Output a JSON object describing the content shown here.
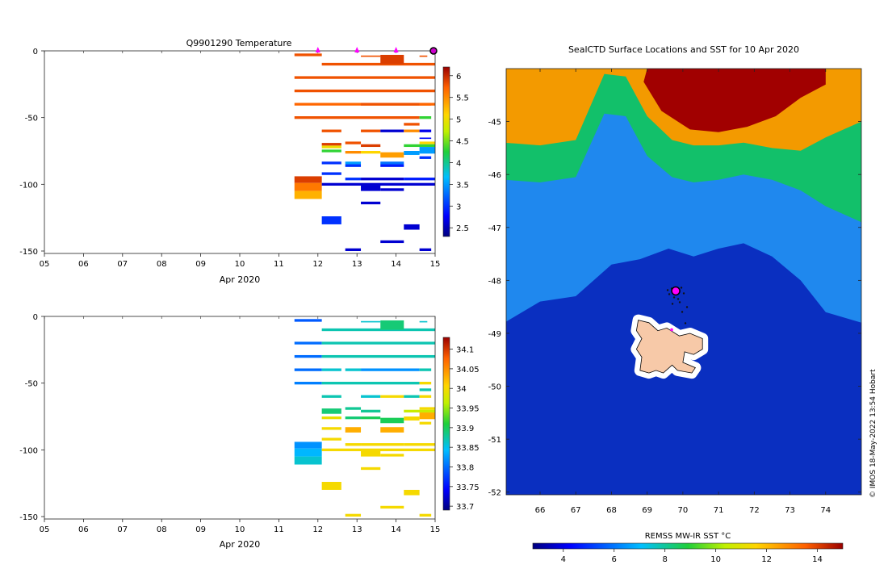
{
  "chart_data": [
    {
      "type": "heatmap",
      "id": "temperature_section",
      "title": "Q9901290  Temperature",
      "xlabel": "Apr 2020",
      "x_ticks": [
        "05",
        "06",
        "07",
        "08",
        "09",
        "10",
        "11",
        "12",
        "13",
        "14",
        "15"
      ],
      "xlim": [
        5,
        15
      ],
      "ylabel": "",
      "y_ticks": [
        "0",
        "-50",
        "-100",
        "-150"
      ],
      "ylim": [
        -152,
        0
      ],
      "profile_markers_days": [
        12,
        13,
        14,
        15
      ],
      "colorbar": {
        "ticks": [
          "2.5",
          "3",
          "3.5",
          "4",
          "4.5",
          "5",
          "5.5",
          "6"
        ],
        "range": [
          2.3,
          6.2
        ],
        "colormap": "jet"
      },
      "cells": [
        [
          11.4,
          12.1,
          -2,
          -4,
          5.8
        ],
        [
          12.1,
          15,
          -9,
          -11,
          5.8
        ],
        [
          13.1,
          13.6,
          -3.5,
          -4.5,
          5.8
        ],
        [
          13.6,
          14.2,
          -3,
          -10,
          5.9
        ],
        [
          14.6,
          14.8,
          -3.5,
          -4.5,
          5.8
        ],
        [
          11.4,
          15,
          -19,
          -21,
          5.8
        ],
        [
          11.4,
          15,
          -29,
          -31,
          5.8
        ],
        [
          11.4,
          15,
          -39,
          -41,
          5.7
        ],
        [
          13.1,
          14.6,
          -39,
          -41,
          5.8
        ],
        [
          14.6,
          14.9,
          -39,
          -41,
          5.7
        ],
        [
          11.4,
          14.6,
          -49,
          -51,
          5.8
        ],
        [
          14.6,
          14.9,
          -49,
          -51,
          4.3
        ],
        [
          12.1,
          12.6,
          -59,
          -61,
          5.8
        ],
        [
          13.1,
          13.6,
          -59,
          -61,
          5.8
        ],
        [
          13.6,
          14.2,
          -59,
          -61,
          2.6
        ],
        [
          14.2,
          14.6,
          -59,
          -61,
          5.5
        ],
        [
          14.6,
          14.9,
          -59,
          -61,
          2.7
        ],
        [
          14.2,
          14.6,
          -54,
          -56,
          5.8
        ],
        [
          12.7,
          13.1,
          -68,
          -70,
          5.8
        ],
        [
          13.1,
          13.6,
          -70,
          -72,
          5.9
        ],
        [
          12.1,
          12.6,
          -69,
          -71,
          5.9
        ],
        [
          12.1,
          12.6,
          -71,
          -73,
          5.0
        ],
        [
          14.6,
          15,
          -68,
          -70,
          5.1
        ],
        [
          14.6,
          14.9,
          -65,
          -66,
          2.8
        ],
        [
          14.2,
          15,
          -70,
          -72,
          4.3
        ],
        [
          14.6,
          15,
          -72,
          -77,
          3.5
        ],
        [
          12.1,
          12.6,
          -74,
          -76,
          4.3
        ],
        [
          12.7,
          13.1,
          -75,
          -77,
          5.5
        ],
        [
          13.1,
          13.6,
          -75,
          -77,
          5.1
        ],
        [
          13.6,
          14.2,
          -76,
          -80,
          5.4
        ],
        [
          14.2,
          14.6,
          -75,
          -78,
          3.5
        ],
        [
          14.6,
          14.9,
          -79,
          -81,
          3.0
        ],
        [
          12.1,
          12.6,
          -83,
          -85,
          3.0
        ],
        [
          12.7,
          13.1,
          -83,
          -85,
          3.5
        ],
        [
          12.7,
          13.1,
          -85,
          -87,
          3.0
        ],
        [
          13.6,
          14.2,
          -83,
          -85,
          3.3
        ],
        [
          13.6,
          14.2,
          -85,
          -87,
          2.9
        ],
        [
          12.1,
          12.6,
          -91,
          -93,
          3.0
        ],
        [
          12.7,
          13.1,
          -95,
          -97,
          3.0
        ],
        [
          13.1,
          14.2,
          -95,
          -97,
          2.6
        ],
        [
          14.2,
          15,
          -95,
          -97,
          2.9
        ],
        [
          11.4,
          12.1,
          -94,
          -99,
          5.9
        ],
        [
          11.4,
          12.1,
          -99,
          -105,
          5.6
        ],
        [
          11.4,
          12.1,
          -105,
          -111,
          5.3
        ],
        [
          12.1,
          15,
          -99,
          -101,
          2.6
        ],
        [
          13.1,
          13.6,
          -101,
          -105,
          2.6
        ],
        [
          13.6,
          14.2,
          -103,
          -105,
          2.6
        ],
        [
          13.1,
          13.6,
          -113,
          -115,
          2.6
        ],
        [
          12.1,
          12.6,
          -124,
          -130,
          3.0
        ],
        [
          14.2,
          14.6,
          -130,
          -134,
          2.6
        ],
        [
          13.6,
          14.2,
          -142,
          -144,
          2.6
        ],
        [
          12.7,
          13.1,
          -148,
          -150,
          2.6
        ],
        [
          14.6,
          14.9,
          -148,
          -150,
          2.6
        ]
      ]
    },
    {
      "type": "heatmap",
      "id": "salinity_section",
      "title": "",
      "xlabel": "Apr 2020",
      "x_ticks": [
        "05",
        "06",
        "07",
        "08",
        "09",
        "10",
        "11",
        "12",
        "13",
        "14",
        "15"
      ],
      "xlim": [
        5,
        15
      ],
      "ylabel": "",
      "y_ticks": [
        "0",
        "-50",
        "-100",
        "-150"
      ],
      "ylim": [
        -152,
        0
      ],
      "colorbar": {
        "ticks": [
          "33.7",
          "33.75",
          "33.8",
          "33.85",
          "33.9",
          "33.95",
          "34",
          "34.05",
          "34.1"
        ],
        "range": [
          33.69,
          34.13
        ],
        "colormap": "jet"
      },
      "cells": [
        [
          11.4,
          12.1,
          -2,
          -4,
          33.79
        ],
        [
          12.1,
          15,
          -9,
          -11,
          33.87
        ],
        [
          13.1,
          13.6,
          -3.5,
          -4.5,
          33.86
        ],
        [
          13.6,
          14.2,
          -3,
          -10,
          33.89
        ],
        [
          14.6,
          14.8,
          -3.5,
          -4.5,
          33.86
        ],
        [
          11.4,
          12.1,
          -19,
          -21,
          33.8
        ],
        [
          12.1,
          15,
          -19,
          -21,
          33.87
        ],
        [
          11.4,
          12.1,
          -29,
          -31,
          33.8
        ],
        [
          12.1,
          15,
          -29,
          -31,
          33.87
        ],
        [
          11.4,
          12.1,
          -39,
          -41,
          33.8
        ],
        [
          12.1,
          12.6,
          -39,
          -41,
          33.86
        ],
        [
          12.7,
          13.1,
          -39,
          -41,
          33.86
        ],
        [
          13.1,
          14.6,
          -39,
          -41,
          33.82
        ],
        [
          14.6,
          14.9,
          -39,
          -41,
          33.87
        ],
        [
          11.4,
          12.1,
          -49,
          -51,
          33.81
        ],
        [
          12.1,
          14.6,
          -49,
          -51,
          33.87
        ],
        [
          14.6,
          14.9,
          -49,
          -51,
          34.0
        ],
        [
          14.6,
          14.9,
          -54,
          -56,
          33.87
        ],
        [
          12.1,
          12.6,
          -59,
          -61,
          33.87
        ],
        [
          13.1,
          13.6,
          -59,
          -61,
          33.86
        ],
        [
          13.6,
          14.2,
          -59,
          -61,
          34.0
        ],
        [
          14.2,
          14.6,
          -59,
          -61,
          33.87
        ],
        [
          14.6,
          14.9,
          -59,
          -61,
          34.0
        ],
        [
          12.7,
          13.1,
          -68,
          -70,
          33.88
        ],
        [
          13.1,
          13.6,
          -70,
          -72,
          33.88
        ],
        [
          12.1,
          12.6,
          -69,
          -73,
          33.89
        ],
        [
          14.6,
          15,
          -68,
          -70,
          34.0
        ],
        [
          14.2,
          15,
          -70,
          -72,
          33.97
        ],
        [
          14.6,
          15,
          -72,
          -77,
          34.03
        ],
        [
          12.1,
          12.6,
          -75,
          -77,
          33.99
        ],
        [
          12.7,
          13.1,
          -75,
          -77,
          33.89
        ],
        [
          13.1,
          13.6,
          -75,
          -77,
          33.9
        ],
        [
          13.6,
          14.2,
          -76,
          -80,
          33.9
        ],
        [
          14.2,
          14.6,
          -75,
          -78,
          34.0
        ],
        [
          14.6,
          14.9,
          -79,
          -81,
          34.0
        ],
        [
          12.1,
          12.6,
          -83,
          -85,
          34.0
        ],
        [
          12.7,
          13.1,
          -83,
          -87,
          34.03
        ],
        [
          13.6,
          14.2,
          -83,
          -87,
          34.03
        ],
        [
          12.1,
          12.6,
          -91,
          -93,
          34.0
        ],
        [
          12.7,
          13.1,
          -95,
          -97,
          34.0
        ],
        [
          13.1,
          14.2,
          -95,
          -97,
          34.0
        ],
        [
          14.2,
          15,
          -95,
          -97,
          34.0
        ],
        [
          11.4,
          12.1,
          -94,
          -99,
          33.82
        ],
        [
          11.4,
          12.1,
          -99,
          -105,
          33.84
        ],
        [
          11.4,
          12.1,
          -105,
          -111,
          33.86
        ],
        [
          12.1,
          15,
          -99,
          -101,
          34.0
        ],
        [
          13.1,
          13.6,
          -101,
          -105,
          34.0
        ],
        [
          13.6,
          14.2,
          -103,
          -105,
          34.0
        ],
        [
          13.1,
          13.6,
          -113,
          -115,
          34.0
        ],
        [
          12.1,
          12.6,
          -124,
          -130,
          34.0
        ],
        [
          14.2,
          14.6,
          -130,
          -134,
          34.0
        ],
        [
          13.6,
          14.2,
          -142,
          -144,
          34.0
        ],
        [
          12.7,
          13.1,
          -148,
          -150,
          34.0
        ],
        [
          14.6,
          14.9,
          -148,
          -150,
          34.0
        ]
      ]
    },
    {
      "type": "map",
      "id": "sst_map",
      "title": "SealCTD Surface Locations and SST for 10 Apr 2020",
      "lon_ticks": [
        "66",
        "67",
        "68",
        "69",
        "70",
        "71",
        "72",
        "73",
        "74"
      ],
      "lat_ticks": [
        "-45",
        "-46",
        "-47",
        "-48",
        "-49",
        "-50",
        "-51",
        "-52"
      ],
      "lon_range": [
        65.05,
        75.0
      ],
      "lat_range": [
        -52.05,
        -44.0
      ],
      "colorbar": {
        "label": "REMSS MW-IR SST °C",
        "ticks": [
          "4",
          "6",
          "8",
          "10",
          "12",
          "14"
        ],
        "range": [
          2.8,
          15.0
        ],
        "colormap": "jet"
      },
      "warm_boundary_lat": [
        [
          65.0,
          -45.4
        ],
        [
          66.0,
          -45.45
        ],
        [
          67.0,
          -45.35
        ],
        [
          67.8,
          -44.1
        ],
        [
          68.4,
          -44.15
        ],
        [
          69.0,
          -44.9
        ],
        [
          69.7,
          -45.35
        ],
        [
          70.3,
          -45.45
        ],
        [
          71.0,
          -45.45
        ],
        [
          71.7,
          -45.4
        ],
        [
          72.5,
          -45.5
        ],
        [
          73.3,
          -45.55
        ],
        [
          74.0,
          -45.3
        ],
        [
          75.0,
          -45.0
        ]
      ],
      "green_boundary_lat": [
        [
          65.0,
          -46.1
        ],
        [
          66.0,
          -46.15
        ],
        [
          67.0,
          -46.05
        ],
        [
          67.8,
          -44.85
        ],
        [
          68.4,
          -44.9
        ],
        [
          69.0,
          -45.65
        ],
        [
          69.7,
          -46.05
        ],
        [
          70.3,
          -46.15
        ],
        [
          71.0,
          -46.1
        ],
        [
          71.7,
          -46.0
        ],
        [
          72.5,
          -46.1
        ],
        [
          73.3,
          -46.3
        ],
        [
          74.0,
          -46.6
        ],
        [
          75.0,
          -46.9
        ]
      ],
      "blue_boundary_lat": [
        [
          65.0,
          -48.8
        ],
        [
          66.0,
          -48.4
        ],
        [
          67.0,
          -48.3
        ],
        [
          68.0,
          -47.7
        ],
        [
          68.8,
          -47.6
        ],
        [
          69.6,
          -47.4
        ],
        [
          70.3,
          -47.55
        ],
        [
          71.0,
          -47.4
        ],
        [
          71.7,
          -47.3
        ],
        [
          72.5,
          -47.55
        ],
        [
          73.3,
          -48.0
        ],
        [
          74.0,
          -48.6
        ],
        [
          75.0,
          -48.8
        ]
      ],
      "seal_location": {
        "lon": 69.8,
        "lat": -48.2
      },
      "credit": "© IMOS 18-May-2022 13:54 Hobart"
    }
  ]
}
